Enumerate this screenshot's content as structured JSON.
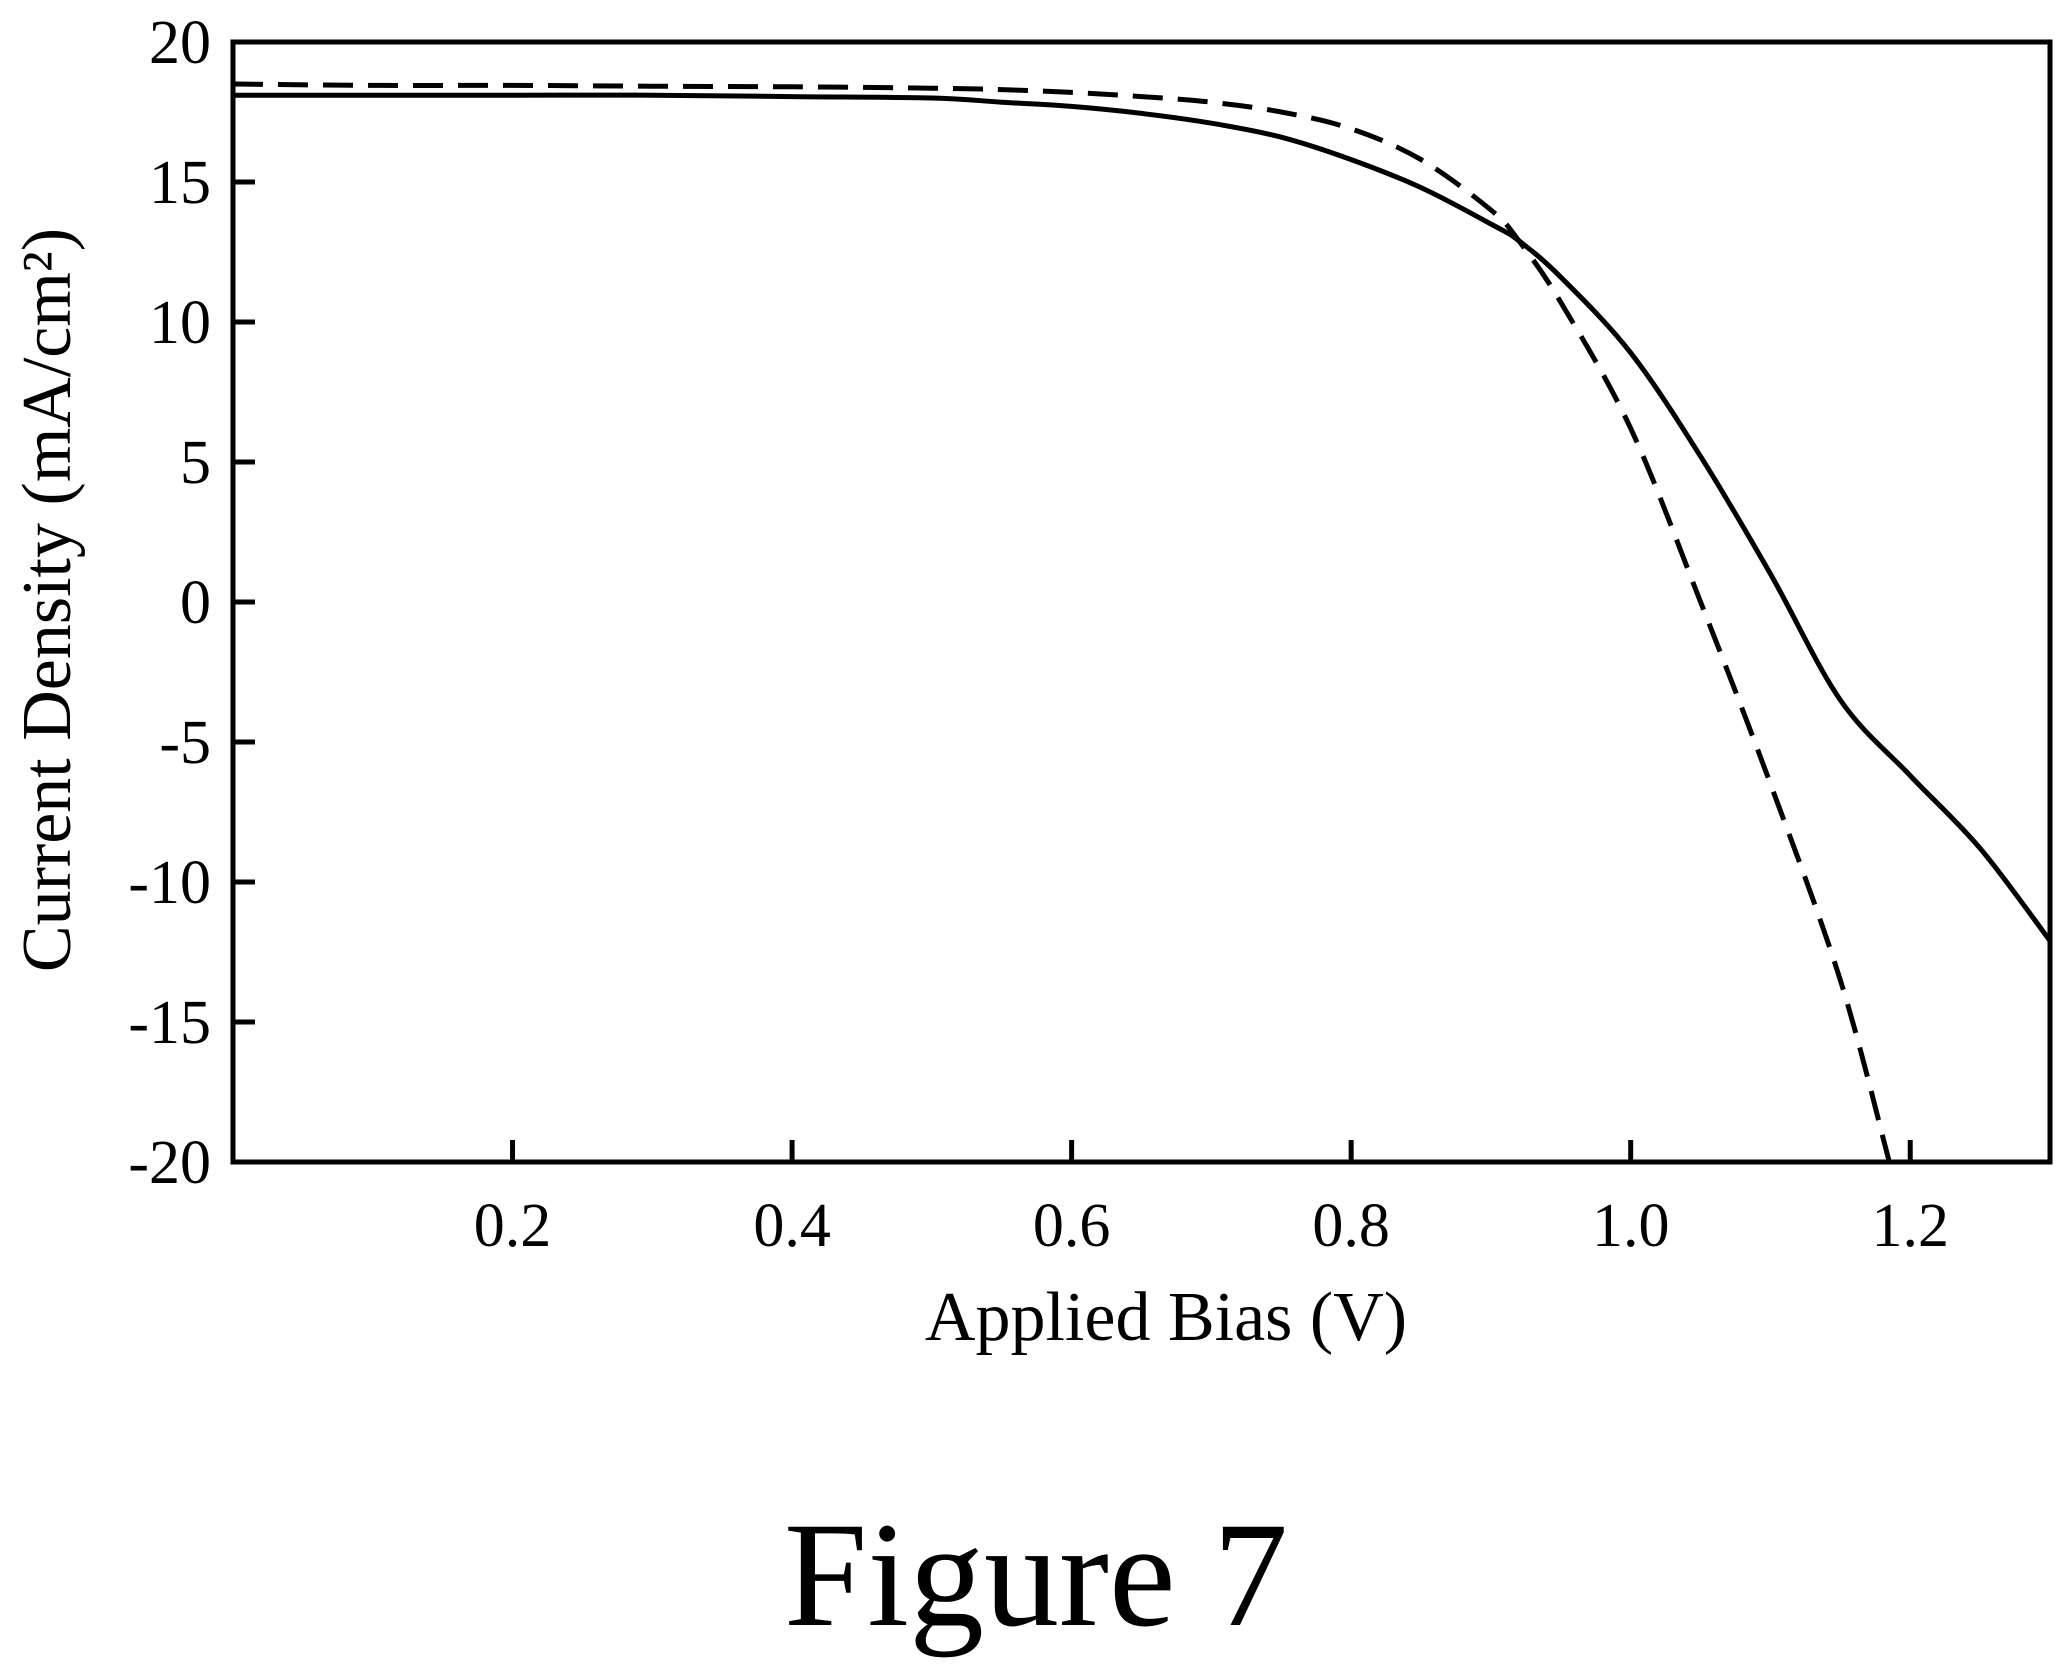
{
  "figure_label": "Figure 7",
  "chart_data": {
    "type": "line",
    "title": "",
    "xlabel": "Applied Bias (V)",
    "ylabel": "Current Density (mA/cm²)",
    "xlim": [
      0.0,
      1.3
    ],
    "ylim": [
      -20,
      20
    ],
    "x_ticks": [
      0.2,
      0.4,
      0.6,
      0.8,
      1.0,
      1.2
    ],
    "x_tick_labels": [
      "0.2",
      "0.4",
      "0.6",
      "0.8",
      "1.0",
      "1.2"
    ],
    "y_ticks": [
      20,
      15,
      10,
      5,
      0,
      -5,
      -10,
      -15,
      -20
    ],
    "y_tick_labels": [
      "20",
      "15",
      "10",
      "5",
      "0",
      "-5",
      "-10",
      "-15",
      "-20"
    ],
    "grid": false,
    "legend": "none",
    "series": [
      {
        "style": "solid",
        "color": "#000000",
        "x": [
          0.0,
          0.1,
          0.2,
          0.3,
          0.4,
          0.5,
          0.55,
          0.6,
          0.65,
          0.7,
          0.75,
          0.8,
          0.85,
          0.9,
          0.92,
          0.95,
          1.0,
          1.05,
          1.1,
          1.15,
          1.2,
          1.25,
          1.3
        ],
        "y": [
          18.1,
          18.1,
          18.1,
          18.1,
          18.05,
          18.0,
          17.85,
          17.7,
          17.45,
          17.1,
          16.6,
          15.8,
          14.8,
          13.5,
          12.9,
          11.6,
          8.9,
          5.2,
          1.0,
          -3.5,
          -6.2,
          -8.8,
          -12.1
        ]
      },
      {
        "style": "dashed",
        "color": "#000000",
        "x": [
          0.0,
          0.1,
          0.2,
          0.3,
          0.4,
          0.5,
          0.55,
          0.6,
          0.65,
          0.7,
          0.75,
          0.8,
          0.85,
          0.9,
          0.92,
          0.95,
          1.0,
          1.05,
          1.1,
          1.15,
          1.185
        ],
        "y": [
          18.5,
          18.45,
          18.45,
          18.42,
          18.4,
          18.35,
          18.3,
          18.2,
          18.05,
          17.85,
          17.5,
          16.9,
          15.8,
          14.0,
          12.9,
          10.7,
          6.2,
          0.0,
          -6.5,
          -13.5,
          -20.0
        ]
      }
    ]
  }
}
